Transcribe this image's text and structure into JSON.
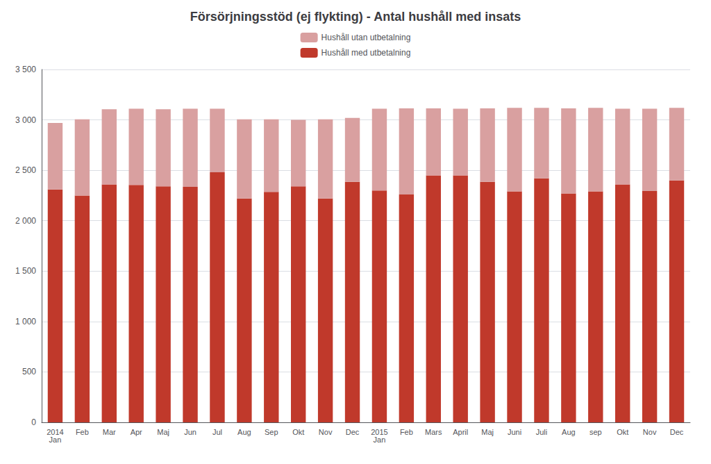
{
  "chart_data": {
    "type": "bar",
    "title": "Försörjningsstöd (ej flykting) - Antal hushåll med insats",
    "categories": [
      "2014\nJan",
      "Feb",
      "Mar",
      "Apr",
      "Maj",
      "Jun",
      "Jul",
      "Aug",
      "Sep",
      "Okt",
      "Nov",
      "Dec",
      "2015\nJan",
      "Feb",
      "Mars",
      "April",
      "Maj",
      "Juni",
      "Juli",
      "Aug",
      "sep",
      "Okt",
      "Nov",
      "Dec"
    ],
    "series": [
      {
        "name": "Hushåll med utbetalning",
        "color": "#C0392B",
        "values": [
          2310,
          2250,
          2360,
          2355,
          2340,
          2335,
          2480,
          2220,
          2285,
          2340,
          2220,
          2385,
          2300,
          2260,
          2450,
          2450,
          2385,
          2290,
          2420,
          2270,
          2290,
          2360,
          2295,
          2400
        ]
      },
      {
        "name": "Hushåll utan utbetalning",
        "color": "#D9A0A0",
        "values": [
          660,
          755,
          745,
          755,
          765,
          775,
          630,
          785,
          720,
          660,
          785,
          635,
          810,
          855,
          665,
          660,
          730,
          830,
          700,
          845,
          830,
          750,
          815,
          720
        ]
      }
    ],
    "stacked": true,
    "ylim": [
      0,
      3500
    ],
    "yticks": [
      0,
      500,
      {
        "value": 1000,
        "label": "1 000"
      },
      {
        "value": 1500,
        "label": "1 500"
      },
      {
        "value": 2000,
        "label": "2 000"
      },
      {
        "value": 2500,
        "label": "2 500"
      },
      {
        "value": 3000,
        "label": "3 000"
      },
      {
        "value": 3500,
        "label": "3 500"
      }
    ],
    "grid": true,
    "legend": "upper center"
  }
}
